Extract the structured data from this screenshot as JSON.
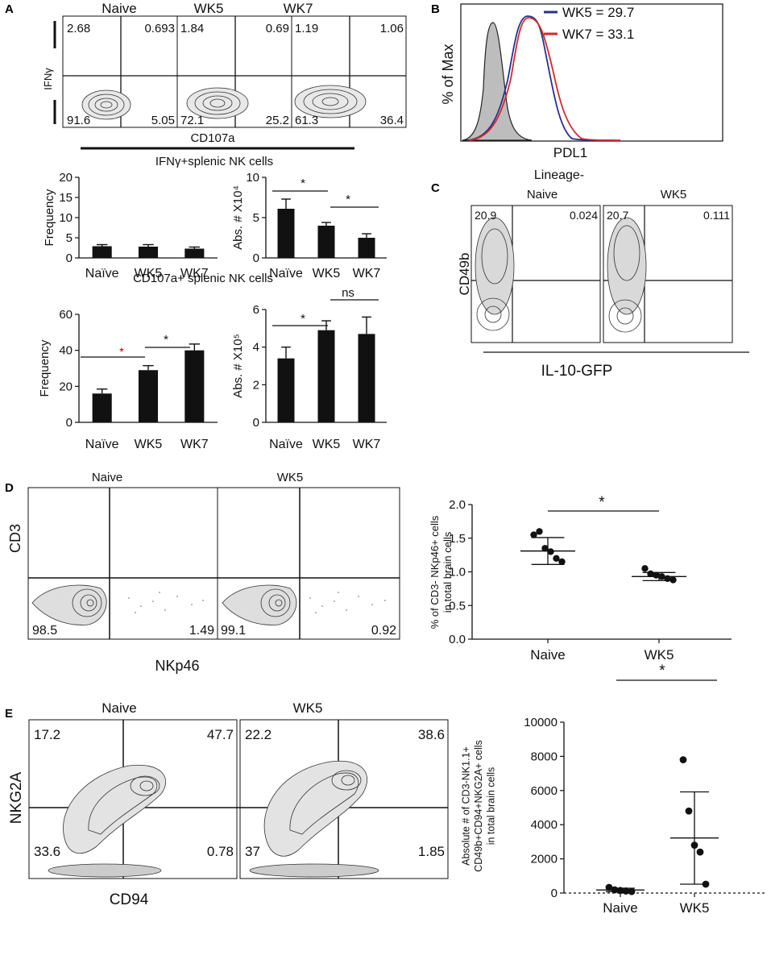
{
  "panelA": {
    "label": "A",
    "flow": {
      "groups": [
        "Naive",
        "WK5",
        "WK7"
      ],
      "quadrants": [
        {
          "ul": "2.68",
          "ur": "0.693",
          "ll": "91.6",
          "lr": "5.05"
        },
        {
          "ul": "1.84",
          "ur": "0.69",
          "ll": "72.1",
          "lr": "25.2"
        },
        {
          "ul": "1.19",
          "ur": "1.06",
          "ll": "61.3",
          "lr": "36.4"
        }
      ],
      "ylabel": "IFNγ",
      "xlabel": "CD107a"
    },
    "ifn_title": "IFNγ+splenic NK cells",
    "cd107_title": "CD107a+ splenic NK cells",
    "sig_star": "*",
    "sig_ns": "ns"
  },
  "panelB": {
    "label": "B",
    "ylabel": "% of Max",
    "xlabel": "PDL1",
    "legend": [
      {
        "text": "WK5 = 29.7",
        "color": "#2a2f8f"
      },
      {
        "text": "WK7 = 33.1",
        "color": "#d42a2a"
      }
    ]
  },
  "panelC": {
    "label": "C",
    "title": "Lineage-",
    "groups": [
      "Naive",
      "WK5"
    ],
    "quadrants": [
      {
        "ul": "20.9",
        "ur": "0.024"
      },
      {
        "ul": "20.7",
        "ur": "0.111"
      }
    ],
    "ylabel": "CD49b",
    "xlabel": "IL-10-GFP"
  },
  "panelD": {
    "label": "D",
    "groups": [
      "Naive",
      "WK5"
    ],
    "quadrants": [
      {
        "ll": "98.5",
        "lr": "1.49"
      },
      {
        "ll": "99.1",
        "lr": "0.92"
      }
    ],
    "ylabel": "CD3",
    "xlabel": "NKp46",
    "sig_star": "*"
  },
  "panelE": {
    "label": "E",
    "groups": [
      "Naive",
      "WK5"
    ],
    "quadrants": [
      {
        "ul": "17.2",
        "ur": "47.7",
        "ll": "33.6",
        "lr": "0.78"
      },
      {
        "ul": "22.2",
        "ur": "38.6",
        "ll": "37",
        "lr": "1.85"
      }
    ],
    "ylabel": "NKG2A",
    "xlabel": "CD94",
    "sig_star": "*"
  },
  "chart_data": [
    {
      "id": "a-ifn-freq",
      "type": "bar",
      "categories": [
        "Naïve",
        "WK5",
        "WK7"
      ],
      "values": [
        2.9,
        2.8,
        2.3
      ],
      "errors": [
        0.4,
        0.5,
        0.4
      ],
      "ylabel": "Frequency",
      "ylim": [
        0,
        20
      ],
      "yticks": [
        0,
        5,
        10,
        15,
        20
      ]
    },
    {
      "id": "a-ifn-abs",
      "type": "bar",
      "categories": [
        "Naïve",
        "WK5",
        "WK7"
      ],
      "values": [
        6.1,
        4.0,
        2.5
      ],
      "errors": [
        1.2,
        0.4,
        0.5
      ],
      "ylabel": "Abs. # X10⁴",
      "ylim": [
        0,
        10
      ],
      "yticks": [
        0,
        5,
        10
      ]
    },
    {
      "id": "a-cd107-freq",
      "type": "bar",
      "categories": [
        "Naïve",
        "WK5",
        "WK7"
      ],
      "values": [
        16,
        29,
        40
      ],
      "errors": [
        2.5,
        2.5,
        3.5
      ],
      "ylabel": "Frequency",
      "ylim": [
        0,
        60
      ],
      "yticks": [
        0,
        20,
        40,
        60
      ]
    },
    {
      "id": "a-cd107-abs",
      "type": "bar",
      "categories": [
        "Naïve",
        "WK5",
        "WK7"
      ],
      "values": [
        3.4,
        4.9,
        4.7
      ],
      "errors": [
        0.6,
        0.5,
        0.9
      ],
      "ylabel": "Abs. # X10⁵",
      "ylim": [
        0,
        6
      ],
      "yticks": [
        0,
        2,
        4,
        6
      ]
    },
    {
      "id": "d-scatter",
      "type": "scatter",
      "categories": [
        "Naive",
        "WK5"
      ],
      "points": [
        [
          1.55,
          1.6,
          1.35,
          1.3,
          1.2,
          1.15
        ],
        [
          1.05,
          0.97,
          0.95,
          0.93,
          0.9,
          0.88
        ]
      ],
      "mean": [
        1.31,
        0.93
      ],
      "sd": [
        0.2,
        0.06
      ],
      "ylabel": "% of CD3- NKp46+ cells in total brain cells",
      "ylim": [
        0,
        2.0
      ],
      "yticks": [
        "0.0",
        "0.5",
        "1.0",
        "1.5",
        "2.0"
      ]
    },
    {
      "id": "e-scatter",
      "type": "scatter",
      "categories": [
        "Naive",
        "WK5"
      ],
      "points": [
        [
          330,
          190,
          150,
          120,
          90
        ],
        [
          7800,
          4800,
          2800,
          2400,
          520
        ]
      ],
      "mean": [
        180,
        3220
      ],
      "sd": [
        100,
        2700
      ],
      "ylabel": "Absolute # of CD3-NK1.1+ CD49b+CD94+NKG2A+ cells in total brain cells",
      "ylim": [
        0,
        10000
      ],
      "yticks": [
        "0",
        "2000",
        "4000",
        "6000",
        "8000",
        "10000"
      ]
    }
  ]
}
